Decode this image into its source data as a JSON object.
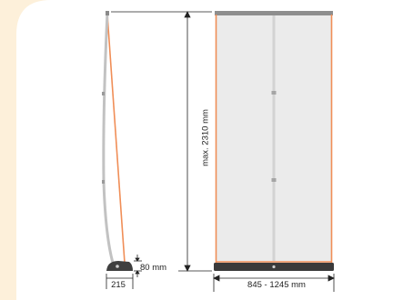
{
  "colors": {
    "background_cream": "#fdf0da",
    "panel_white": "#ffffff",
    "banner_fill": "#ebebeb",
    "frame_orange": "#f08e57",
    "pole_grey": "#c8c8c8",
    "dim_line": "#222222"
  },
  "labels": {
    "height": "max. 2310 mm",
    "width": "845 - 1245 mm",
    "base_height": "80 mm",
    "base_depth": "215"
  }
}
